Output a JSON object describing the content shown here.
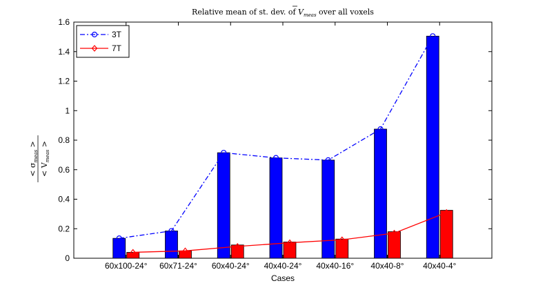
{
  "chart_data": {
    "type": "bar",
    "title_prefix": "Relative mean of st. dev. of ",
    "title_symbol": "V",
    "title_sub": "meas",
    "title_suffix": " over all voxels",
    "xlabel": "Cases",
    "ylabel_num": "< σ",
    "ylabel_num_sub": "meas",
    "ylabel_num_close": " >",
    "ylabel_den": "< V",
    "ylabel_den_sub": "meas",
    "ylabel_den_close": " >",
    "categories": [
      "60x100-24°",
      "60x71-24°",
      "60x40-24°",
      "40x40-24°",
      "40x40-16°",
      "40x40-8°",
      "40x40-4°"
    ],
    "ylim": [
      0,
      1.6
    ],
    "yticks": [
      "0",
      "0.2",
      "0.4",
      "0.6",
      "0.8",
      "1",
      "1.2",
      "1.4",
      "1.6"
    ],
    "grid": false,
    "legend_position": "top-left",
    "series": [
      {
        "name": "3T",
        "values": [
          0.135,
          0.185,
          0.715,
          0.68,
          0.665,
          0.875,
          1.505
        ],
        "color": "#0000ff",
        "line_style": "dash-dot",
        "marker": "circle"
      },
      {
        "name": "7T",
        "values": [
          0.04,
          0.05,
          0.09,
          0.11,
          0.13,
          0.18,
          0.325
        ],
        "line_values": [
          0.04,
          0.05,
          0.08,
          0.105,
          0.125,
          0.17,
          0.31
        ],
        "color": "#ff0000",
        "line_style": "solid",
        "marker": "diamond"
      }
    ]
  }
}
